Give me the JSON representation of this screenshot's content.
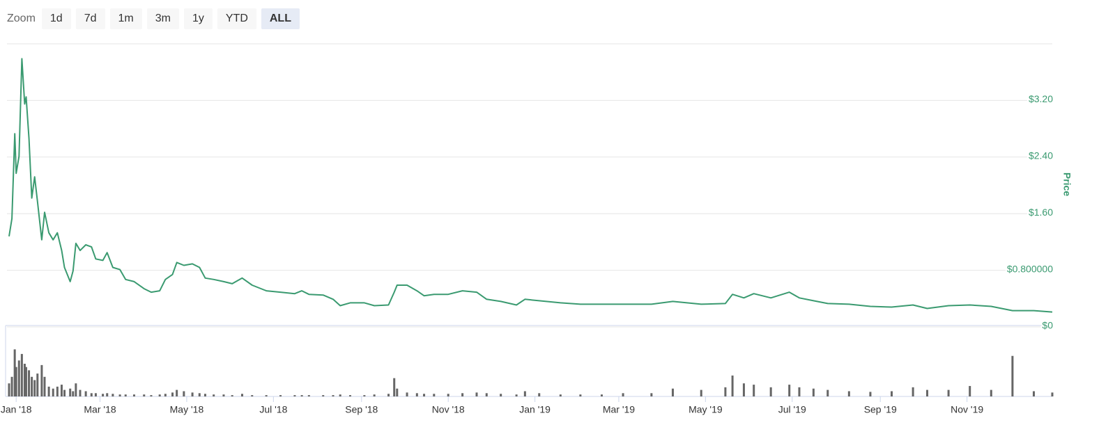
{
  "range_selector": {
    "label": "Zoom",
    "buttons": [
      "1d",
      "7d",
      "1m",
      "3m",
      "1y",
      "YTD",
      "ALL"
    ],
    "selected": 6
  },
  "chart_data": {
    "type": "line",
    "x": [
      "2017-12-27",
      "2017-12-29",
      "2017-12-31",
      "2018-01-01",
      "2018-01-03",
      "2018-01-05",
      "2018-01-07",
      "2018-01-08",
      "2018-01-10",
      "2018-01-12",
      "2018-01-14",
      "2018-01-16",
      "2018-01-19",
      "2018-01-21",
      "2018-01-24",
      "2018-01-27",
      "2018-01-30",
      "2018-02-02",
      "2018-02-04",
      "2018-02-08",
      "2018-02-10",
      "2018-02-12",
      "2018-02-15",
      "2018-02-19",
      "2018-02-23",
      "2018-02-26",
      "2018-03-03",
      "2018-03-06",
      "2018-03-10",
      "2018-03-15",
      "2018-03-19",
      "2018-03-25",
      "2018-04-01",
      "2018-04-06",
      "2018-04-12",
      "2018-04-16",
      "2018-04-21",
      "2018-04-24",
      "2018-04-29",
      "2018-05-05",
      "2018-05-10",
      "2018-05-14",
      "2018-05-20",
      "2018-05-27",
      "2018-06-02",
      "2018-06-09",
      "2018-06-16",
      "2018-06-26",
      "2018-07-06",
      "2018-07-16",
      "2018-07-21",
      "2018-07-26",
      "2018-08-05",
      "2018-08-12",
      "2018-08-17",
      "2018-08-24",
      "2018-09-03",
      "2018-09-10",
      "2018-09-20",
      "2018-09-24",
      "2018-09-26",
      "2018-10-03",
      "2018-10-10",
      "2018-10-15",
      "2018-10-22",
      "2018-11-01",
      "2018-11-11",
      "2018-11-21",
      "2018-11-28",
      "2018-12-08",
      "2018-12-19",
      "2018-12-25",
      "2019-01-04",
      "2019-01-19",
      "2019-02-02",
      "2019-02-17",
      "2019-03-04",
      "2019-03-24",
      "2019-04-08",
      "2019-04-28",
      "2019-05-15",
      "2019-05-20",
      "2019-05-28",
      "2019-06-04",
      "2019-06-16",
      "2019-06-29",
      "2019-07-06",
      "2019-07-16",
      "2019-07-26",
      "2019-08-10",
      "2019-08-25",
      "2019-09-09",
      "2019-09-24",
      "2019-10-04",
      "2019-10-19",
      "2019-11-03",
      "2019-11-18",
      "2019-12-03",
      "2019-12-18",
      "2019-12-31"
    ],
    "series": [
      {
        "name": "Price",
        "color": "#3a9a70",
        "values": [
          1.28,
          1.53,
          2.73,
          2.17,
          2.41,
          3.79,
          3.15,
          3.25,
          2.66,
          1.82,
          2.12,
          1.77,
          1.23,
          1.62,
          1.33,
          1.23,
          1.33,
          1.08,
          0.84,
          0.64,
          0.79,
          1.18,
          1.08,
          1.16,
          1.13,
          0.96,
          0.94,
          1.05,
          0.84,
          0.81,
          0.67,
          0.64,
          0.54,
          0.49,
          0.51,
          0.67,
          0.74,
          0.91,
          0.87,
          0.89,
          0.84,
          0.69,
          0.67,
          0.64,
          0.61,
          0.69,
          0.59,
          0.51,
          0.49,
          0.47,
          0.51,
          0.46,
          0.45,
          0.39,
          0.3,
          0.34,
          0.34,
          0.3,
          0.31,
          0.49,
          0.59,
          0.59,
          0.51,
          0.44,
          0.46,
          0.46,
          0.51,
          0.49,
          0.39,
          0.36,
          0.31,
          0.39,
          0.37,
          0.34,
          0.32,
          0.32,
          0.32,
          0.32,
          0.36,
          0.32,
          0.33,
          0.46,
          0.41,
          0.47,
          0.41,
          0.49,
          0.41,
          0.37,
          0.33,
          0.32,
          0.29,
          0.28,
          0.31,
          0.26,
          0.3,
          0.31,
          0.29,
          0.23,
          0.23,
          0.21
        ]
      },
      {
        "type": "bar",
        "axis": "y2",
        "color": "#666666",
        "values": [
          20,
          30,
          72,
          45,
          55,
          65,
          50,
          45,
          40,
          30,
          25,
          35,
          48,
          30,
          15,
          12,
          15,
          18,
          10,
          12,
          8,
          20,
          10,
          8,
          5,
          5,
          4,
          5,
          4,
          3,
          3,
          3,
          3,
          2,
          3,
          4,
          6,
          10,
          8,
          6,
          5,
          4,
          3,
          3,
          2,
          4,
          2,
          2,
          2,
          2,
          2,
          2,
          2,
          2,
          3,
          2,
          2,
          3,
          4,
          28,
          12,
          6,
          5,
          4,
          4,
          4,
          5,
          6,
          5,
          4,
          3,
          8,
          5,
          3,
          3,
          3,
          5,
          5,
          12,
          10,
          14,
          32,
          20,
          18,
          14,
          18,
          14,
          12,
          10,
          8,
          7,
          8,
          14,
          10,
          10,
          16,
          10,
          62,
          8,
          6
        ]
      }
    ],
    "xlim": [
      "2017-12-27",
      "2019-12-31"
    ],
    "xticks": [
      {
        "value": "2018-01-01",
        "label": "Jan '18"
      },
      {
        "value": "2018-03-01",
        "label": "Mar '18"
      },
      {
        "value": "2018-05-01",
        "label": "May '18"
      },
      {
        "value": "2018-07-01",
        "label": "Jul '18"
      },
      {
        "value": "2018-09-01",
        "label": "Sep '18"
      },
      {
        "value": "2018-11-01",
        "label": "Nov '18"
      },
      {
        "value": "2019-01-01",
        "label": "Jan '19"
      },
      {
        "value": "2019-03-01",
        "label": "Mar '19"
      },
      {
        "value": "2019-05-01",
        "label": "May '19"
      },
      {
        "value": "2019-07-01",
        "label": "Jul '19"
      },
      {
        "value": "2019-09-01",
        "label": "Sep '19"
      },
      {
        "value": "2019-11-01",
        "label": "Nov '19"
      }
    ],
    "ylim": [
      0,
      4
    ],
    "yticks": [
      {
        "value": 0,
        "label": "$0"
      },
      {
        "value": 0.8,
        "label": "$0.800000"
      },
      {
        "value": 1.6,
        "label": "$1.60"
      },
      {
        "value": 2.4,
        "label": "$2.40"
      },
      {
        "value": 3.2,
        "label": "$3.20"
      }
    ],
    "ylabel": "Price",
    "y2lim": [
      0,
      100
    ],
    "grid": true
  }
}
